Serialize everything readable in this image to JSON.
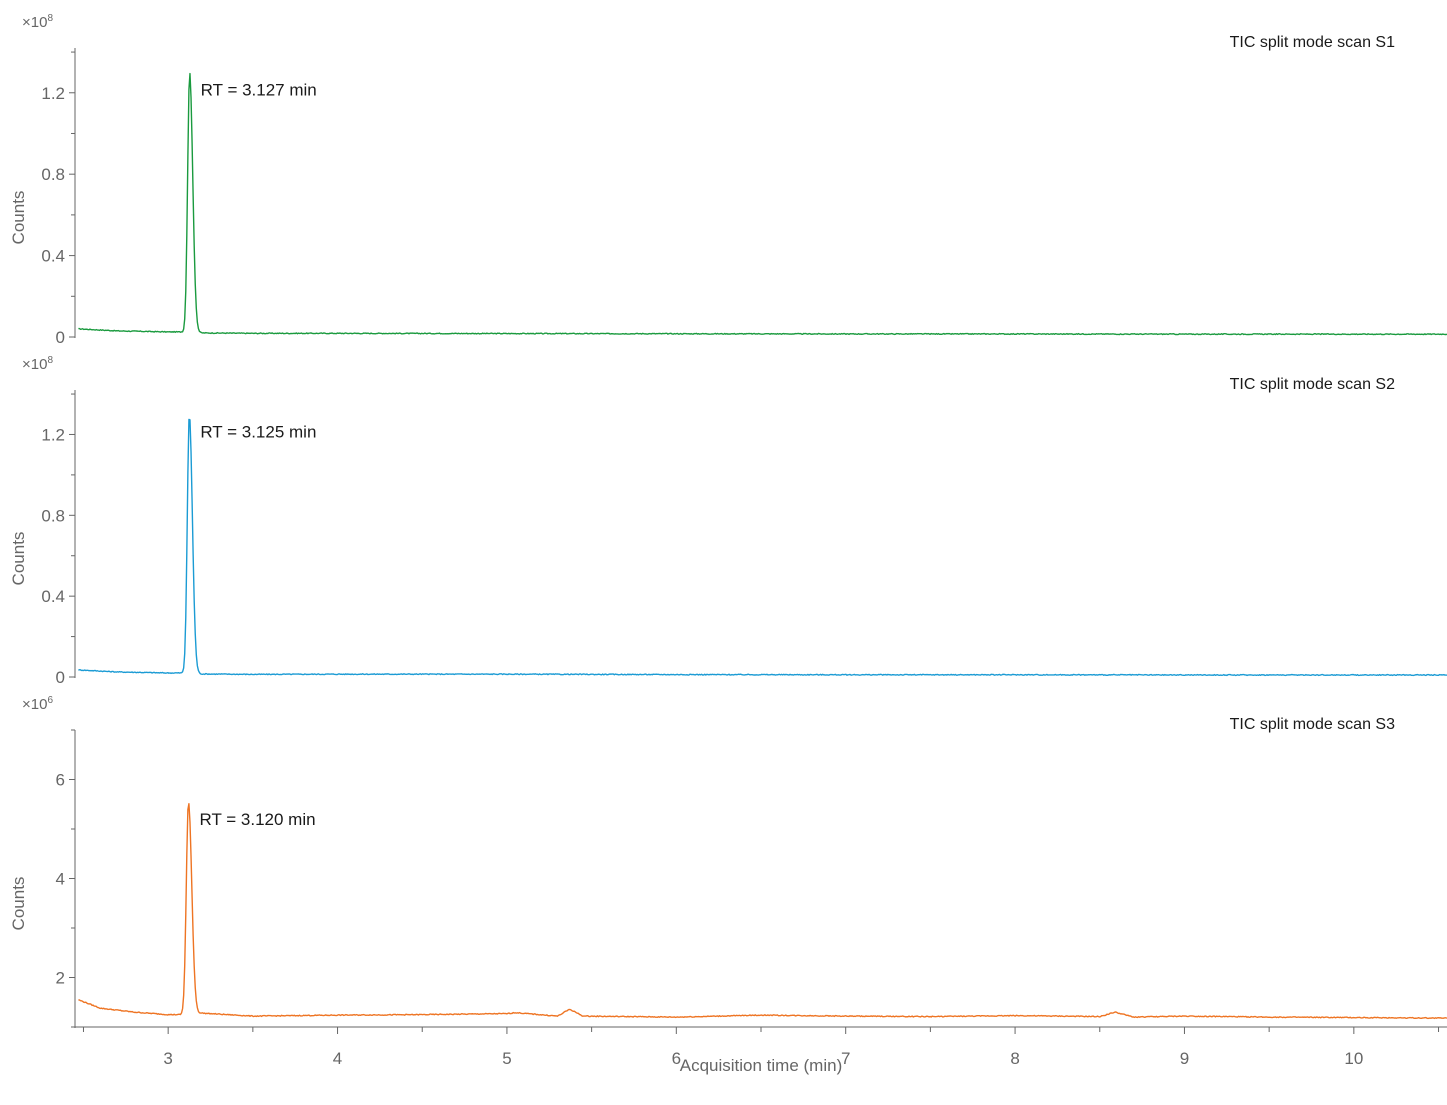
{
  "chart_data": {
    "type": "line",
    "xlabel": "Acquisition time (min)",
    "xlim": [
      2.45,
      10.55
    ],
    "x_ticks": [
      "3",
      "4",
      "5",
      "6",
      "7",
      "8",
      "9",
      "10"
    ],
    "x_tick_values": [
      3,
      4,
      5,
      6,
      7,
      8,
      9,
      10
    ],
    "panels": [
      {
        "title": "TIC split mode scan S1",
        "ylabel": "Counts",
        "multiplier": "×10",
        "multiplier_exp": "8",
        "ylim": [
          0,
          1.42
        ],
        "y_ticks": [
          "0",
          "0.4",
          "0.8",
          "1.2"
        ],
        "y_tick_values": [
          0,
          0.4,
          0.8,
          1.2
        ],
        "color": "#1a9a3e",
        "peak": {
          "x": 3.127,
          "y": 1.3,
          "width": 0.012,
          "label": "RT = 3.127 min"
        },
        "x": [
          2.47,
          2.7,
          3.0,
          3.08,
          3.2,
          3.5,
          4.0,
          5.0,
          6.0,
          7.0,
          8.0,
          9.0,
          10.0,
          10.55
        ],
        "y": [
          0.04,
          0.03,
          0.025,
          0.025,
          0.02,
          0.018,
          0.018,
          0.017,
          0.016,
          0.015,
          0.015,
          0.014,
          0.014,
          0.014
        ]
      },
      {
        "title": "TIC split mode scan S2",
        "ylabel": "Counts",
        "multiplier": "×10",
        "multiplier_exp": "8",
        "ylim": [
          0,
          1.42
        ],
        "y_ticks": [
          "0",
          "0.4",
          "0.8",
          "1.2"
        ],
        "y_tick_values": [
          0,
          0.4,
          0.8,
          1.2
        ],
        "color": "#1b9bd4",
        "peak": {
          "x": 3.125,
          "y": 1.3,
          "width": 0.012,
          "label": "RT = 3.125 min"
        },
        "x": [
          2.47,
          2.7,
          3.0,
          3.08,
          3.2,
          3.5,
          4.0,
          5.0,
          6.0,
          7.0,
          8.0,
          9.0,
          10.0,
          10.55
        ],
        "y": [
          0.035,
          0.025,
          0.02,
          0.02,
          0.015,
          0.013,
          0.014,
          0.014,
          0.012,
          0.011,
          0.011,
          0.01,
          0.01,
          0.01
        ]
      },
      {
        "title": "TIC split mode scan S3",
        "ylabel": "Counts",
        "multiplier": "×10",
        "multiplier_exp": "6",
        "ylim": [
          1.0,
          7.0
        ],
        "y_ticks": [
          "2",
          "4",
          "6"
        ],
        "y_tick_values": [
          2,
          4,
          6
        ],
        "color": "#ee7423",
        "peak": {
          "x": 3.12,
          "y": 5.55,
          "width": 0.013,
          "label": "RT = 3.120 min"
        },
        "x": [
          2.47,
          2.6,
          2.8,
          3.0,
          3.08,
          3.2,
          3.5,
          4.0,
          4.5,
          5.0,
          5.05,
          5.3,
          5.37,
          5.45,
          6.0,
          6.5,
          7.0,
          7.5,
          8.0,
          8.5,
          8.59,
          8.7,
          9.0,
          9.5,
          10.0,
          10.55
        ],
        "y": [
          1.55,
          1.38,
          1.3,
          1.25,
          1.25,
          1.28,
          1.22,
          1.24,
          1.25,
          1.27,
          1.29,
          1.22,
          1.36,
          1.22,
          1.2,
          1.24,
          1.22,
          1.21,
          1.23,
          1.21,
          1.3,
          1.2,
          1.22,
          1.2,
          1.19,
          1.18
        ]
      }
    ]
  }
}
